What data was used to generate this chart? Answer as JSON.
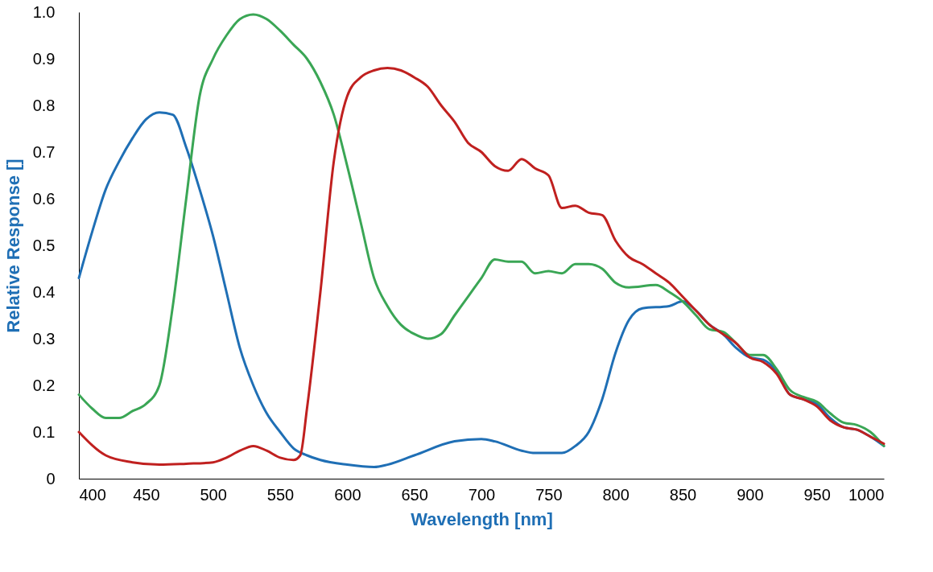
{
  "chart_data": {
    "type": "line",
    "xlabel": "Wavelength [nm]",
    "ylabel": "Relative Response []",
    "xlim": [
      400,
      1000
    ],
    "ylim": [
      0,
      1
    ],
    "xticks": [
      400,
      450,
      500,
      550,
      600,
      650,
      700,
      750,
      800,
      850,
      900,
      950,
      1000
    ],
    "yticks": [
      0,
      0.1,
      0.2,
      0.3,
      0.4,
      0.5,
      0.6,
      0.7,
      0.8,
      0.9,
      {
        "value": 1,
        "label": "1.0"
      }
    ],
    "grid": false,
    "legend": false,
    "marker": "none",
    "line_style": "solid",
    "series": [
      {
        "color": "#1f6fb5",
        "x": [
          400,
          410,
          420,
          430,
          440,
          450,
          460,
          470,
          480,
          490,
          500,
          510,
          520,
          530,
          540,
          550,
          560,
          570,
          580,
          600,
          620,
          630,
          650,
          680,
          700,
          710,
          730,
          740,
          760,
          770,
          780,
          790,
          800,
          810,
          820,
          840,
          850,
          860,
          870,
          880,
          890,
          900,
          910,
          920,
          930,
          940,
          950,
          960,
          970,
          980,
          990,
          1000
        ],
        "values": [
          0.43,
          0.53,
          0.62,
          0.68,
          0.73,
          0.77,
          0.785,
          0.78,
          0.71,
          0.62,
          0.52,
          0.4,
          0.28,
          0.2,
          0.14,
          0.1,
          0.065,
          0.05,
          0.04,
          0.03,
          0.025,
          0.03,
          0.05,
          0.08,
          0.085,
          0.08,
          0.06,
          0.055,
          0.055,
          0.07,
          0.1,
          0.17,
          0.27,
          0.34,
          0.365,
          0.37,
          0.38,
          0.36,
          0.33,
          0.31,
          0.28,
          0.26,
          0.255,
          0.23,
          0.18,
          0.17,
          0.16,
          0.13,
          0.11,
          0.105,
          0.09,
          0.07
        ]
      },
      {
        "color": "#3aa655",
        "x": [
          400,
          410,
          420,
          430,
          440,
          450,
          460,
          470,
          480,
          490,
          500,
          510,
          520,
          530,
          540,
          550,
          560,
          570,
          580,
          590,
          600,
          610,
          620,
          630,
          640,
          650,
          660,
          670,
          680,
          690,
          700,
          710,
          720,
          730,
          740,
          750,
          760,
          770,
          780,
          790,
          800,
          810,
          830,
          840,
          850,
          860,
          870,
          880,
          890,
          900,
          910,
          920,
          930,
          940,
          950,
          960,
          970,
          980,
          990,
          1000
        ],
        "values": [
          0.18,
          0.15,
          0.13,
          0.13,
          0.145,
          0.16,
          0.2,
          0.37,
          0.6,
          0.82,
          0.9,
          0.95,
          0.985,
          0.995,
          0.985,
          0.96,
          0.93,
          0.9,
          0.85,
          0.78,
          0.67,
          0.55,
          0.43,
          0.37,
          0.33,
          0.31,
          0.3,
          0.31,
          0.35,
          0.39,
          0.43,
          0.47,
          0.465,
          0.465,
          0.44,
          0.445,
          0.44,
          0.46,
          0.46,
          0.45,
          0.42,
          0.41,
          0.415,
          0.4,
          0.38,
          0.35,
          0.32,
          0.315,
          0.29,
          0.265,
          0.265,
          0.235,
          0.19,
          0.175,
          0.165,
          0.14,
          0.12,
          0.115,
          0.1,
          0.07
        ]
      },
      {
        "color": "#c0201f",
        "x": [
          400,
          420,
          440,
          460,
          480,
          500,
          510,
          520,
          530,
          540,
          550,
          560,
          565,
          570,
          580,
          590,
          600,
          610,
          620,
          630,
          640,
          650,
          660,
          670,
          680,
          690,
          700,
          710,
          720,
          730,
          740,
          750,
          760,
          770,
          780,
          790,
          800,
          810,
          820,
          830,
          840,
          850,
          860,
          870,
          880,
          890,
          900,
          910,
          920,
          930,
          940,
          950,
          960,
          970,
          980,
          990,
          1000
        ],
        "values": [
          0.1,
          0.05,
          0.035,
          0.03,
          0.032,
          0.035,
          0.045,
          0.06,
          0.07,
          0.06,
          0.045,
          0.04,
          0.05,
          0.15,
          0.4,
          0.68,
          0.82,
          0.86,
          0.875,
          0.88,
          0.875,
          0.86,
          0.84,
          0.8,
          0.765,
          0.72,
          0.7,
          0.67,
          0.66,
          0.685,
          0.665,
          0.65,
          0.58,
          0.585,
          0.57,
          0.565,
          0.51,
          0.475,
          0.46,
          0.44,
          0.42,
          0.39,
          0.36,
          0.33,
          0.31,
          0.29,
          0.26,
          0.25,
          0.225,
          0.18,
          0.17,
          0.155,
          0.125,
          0.11,
          0.105,
          0.09,
          0.075
        ]
      }
    ]
  }
}
